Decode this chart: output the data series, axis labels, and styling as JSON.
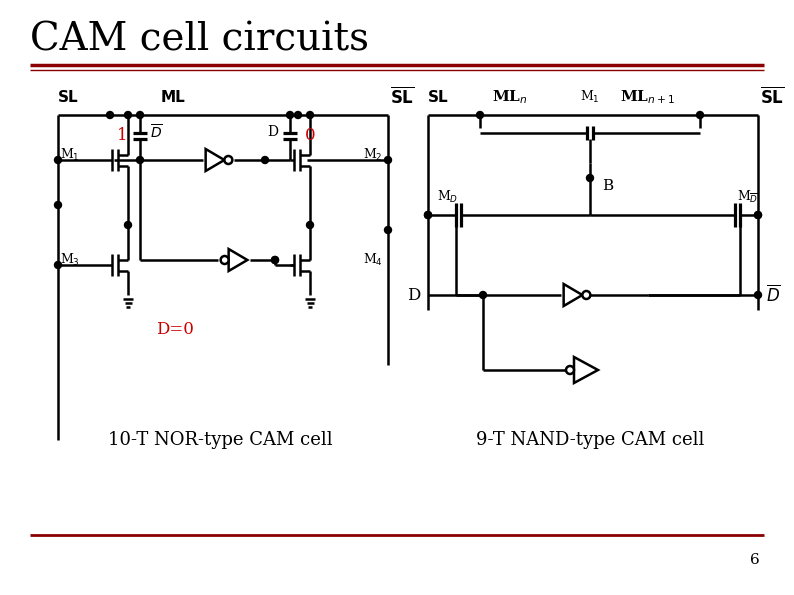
{
  "title": "CAM cell circuits",
  "title_color": "#000000",
  "title_fontsize": 28,
  "bg_color": "#ffffff",
  "red_color": "#8B0000",
  "label_nor": "10-T NOR-type CAM cell",
  "label_nand": "9-T NAND-type CAM cell",
  "page_num": "6",
  "circuit_color": "#000000",
  "red_label_color": "#cc0000"
}
